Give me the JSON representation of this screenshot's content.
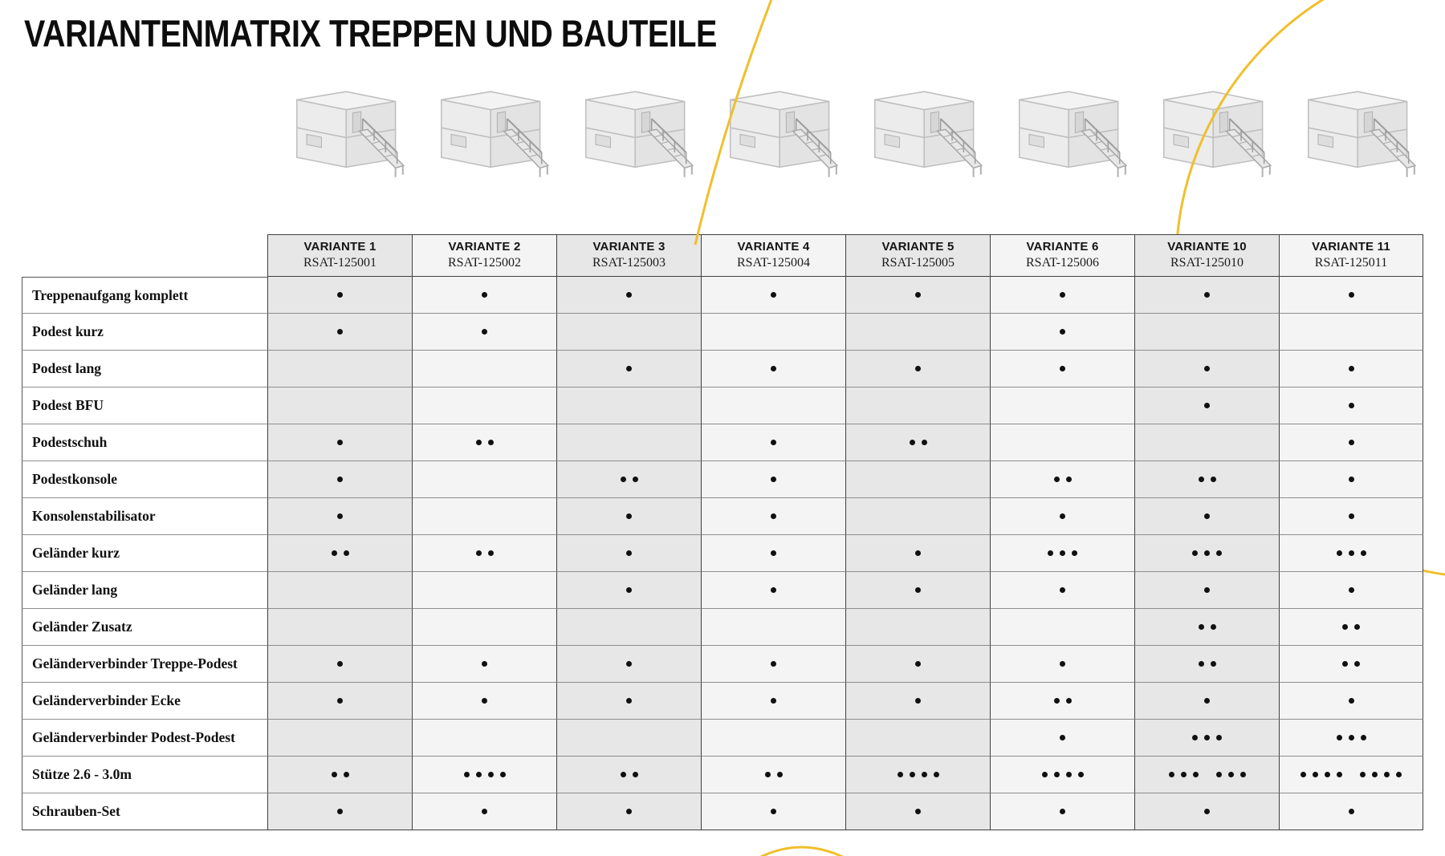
{
  "title": "VARIANTENMATRIX TREPPEN UND BAUTEILE",
  "colors": {
    "accent_yellow": "#F0BF2C",
    "column_gray": "#e7e7e7",
    "column_light": "#f4f4f4",
    "border_dark": "#3f3f3f",
    "border_light": "#8e8e8e",
    "dot": "#111111"
  },
  "table": {
    "columns": [
      {
        "variant": "VARIANTE 1",
        "code": "RSAT-125001"
      },
      {
        "variant": "VARIANTE 2",
        "code": "RSAT-125002"
      },
      {
        "variant": "VARIANTE 3",
        "code": "RSAT-125003"
      },
      {
        "variant": "VARIANTE 4",
        "code": "RSAT-125004"
      },
      {
        "variant": "VARIANTE 5",
        "code": "RSAT-125005"
      },
      {
        "variant": "VARIANTE 6",
        "code": "RSAT-125006"
      },
      {
        "variant": "VARIANTE 10",
        "code": "RSAT-125010"
      },
      {
        "variant": "VARIANTE 11",
        "code": "RSAT-125011"
      }
    ],
    "rows": [
      {
        "label": "Treppenaufgang komplett",
        "cells": [
          [
            1
          ],
          [
            1
          ],
          [
            1
          ],
          [
            1
          ],
          [
            1
          ],
          [
            1
          ],
          [
            1
          ],
          [
            1
          ]
        ]
      },
      {
        "label": "Podest kurz",
        "cells": [
          [
            1
          ],
          [
            1
          ],
          [],
          [],
          [],
          [
            1
          ],
          [],
          []
        ]
      },
      {
        "label": "Podest lang",
        "cells": [
          [],
          [],
          [
            1
          ],
          [
            1
          ],
          [
            1
          ],
          [
            1
          ],
          [
            1
          ],
          [
            1
          ]
        ]
      },
      {
        "label": "Podest BFU",
        "cells": [
          [],
          [],
          [],
          [],
          [],
          [],
          [
            1
          ],
          [
            1
          ]
        ]
      },
      {
        "label": "Podestschuh",
        "cells": [
          [
            1
          ],
          [
            2
          ],
          [],
          [
            1
          ],
          [
            2
          ],
          [],
          [],
          [
            1
          ]
        ]
      },
      {
        "label": "Podestkonsole",
        "cells": [
          [
            1
          ],
          [],
          [
            2
          ],
          [
            1
          ],
          [],
          [
            2
          ],
          [
            2
          ],
          [
            1
          ]
        ]
      },
      {
        "label": "Konsolenstabilisator",
        "cells": [
          [
            1
          ],
          [],
          [
            1
          ],
          [
            1
          ],
          [],
          [
            1
          ],
          [
            1
          ],
          [
            1
          ]
        ]
      },
      {
        "label": "Geländer kurz",
        "cells": [
          [
            2
          ],
          [
            2
          ],
          [
            1
          ],
          [
            1
          ],
          [
            1
          ],
          [
            3
          ],
          [
            3
          ],
          [
            3
          ]
        ]
      },
      {
        "label": "Geländer lang",
        "cells": [
          [],
          [],
          [
            1
          ],
          [
            1
          ],
          [
            1
          ],
          [
            1
          ],
          [
            1
          ],
          [
            1
          ]
        ]
      },
      {
        "label": "Geländer Zusatz",
        "cells": [
          [],
          [],
          [],
          [],
          [],
          [],
          [
            2
          ],
          [
            2
          ]
        ]
      },
      {
        "label": "Geländerverbinder Treppe-Podest",
        "cells": [
          [
            1
          ],
          [
            1
          ],
          [
            1
          ],
          [
            1
          ],
          [
            1
          ],
          [
            1
          ],
          [
            2
          ],
          [
            2
          ]
        ]
      },
      {
        "label": "Geländerverbinder Ecke",
        "cells": [
          [
            1
          ],
          [
            1
          ],
          [
            1
          ],
          [
            1
          ],
          [
            1
          ],
          [
            2
          ],
          [
            1
          ],
          [
            1
          ]
        ]
      },
      {
        "label": "Geländerverbinder Podest-Podest",
        "cells": [
          [],
          [],
          [],
          [],
          [],
          [
            1
          ],
          [
            3
          ],
          [
            3
          ]
        ]
      },
      {
        "label": "Stütze 2.6 - 3.0m",
        "cells": [
          [
            2
          ],
          [
            4
          ],
          [
            2
          ],
          [
            2
          ],
          [
            4
          ],
          [
            4
          ],
          [
            3,
            3
          ],
          [
            4,
            4
          ]
        ]
      },
      {
        "label": "Schrauben-Set",
        "cells": [
          [
            1
          ],
          [
            1
          ],
          [
            1
          ],
          [
            1
          ],
          [
            1
          ],
          [
            1
          ],
          [
            1
          ],
          [
            1
          ]
        ]
      }
    ]
  },
  "illustrations": {
    "count": 8,
    "alt": "Isometrische Container-Gebäude mit Treppenaufgang"
  }
}
